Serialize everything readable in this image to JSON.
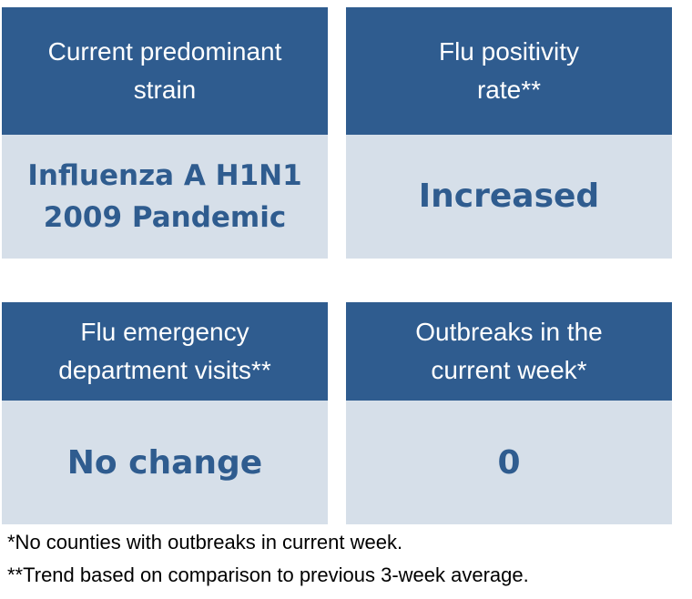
{
  "cards": [
    {
      "title": "Current predominant\nstrain",
      "value": "Influenza A H1N1\n2009 Pandemic"
    },
    {
      "title": "Flu positivity\nrate**",
      "value": "Increased"
    },
    {
      "title": "Flu emergency\ndepartment visits**",
      "value": "No change"
    },
    {
      "title": "Outbreaks in the\ncurrent week*",
      "value": "0"
    }
  ],
  "footnotes": [
    "*No counties with outbreaks in current week.",
    "**Trend based on comparison to previous 3-week average."
  ],
  "colors": {
    "header_bg": "#2f5c8f",
    "body_bg": "#d6dfe9",
    "value_text": "#2f5c8f"
  }
}
